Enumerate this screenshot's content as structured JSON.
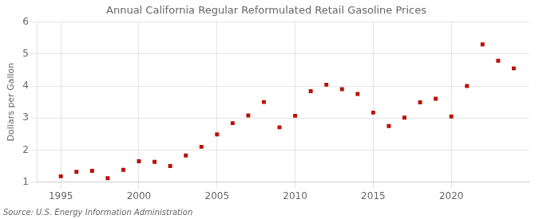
{
  "chart_data": {
    "type": "scatter",
    "title": "Annual California Regular Reformulated Retail Gasoline Prices",
    "ylabel": "Dollars per Gallon",
    "annotations": [
      "Source: U.S. Energy Information Administration"
    ],
    "x": [
      1995,
      1996,
      1997,
      1998,
      1999,
      2000,
      2001,
      2002,
      2003,
      2004,
      2005,
      2006,
      2007,
      2008,
      2009,
      2010,
      2011,
      2012,
      2013,
      2014,
      2015,
      2016,
      2017,
      2018,
      2019,
      2020,
      2021,
      2022,
      2023,
      2024
    ],
    "values": [
      1.18,
      1.32,
      1.35,
      1.12,
      1.38,
      1.65,
      1.63,
      1.5,
      1.83,
      2.1,
      2.49,
      2.84,
      3.08,
      3.5,
      2.71,
      3.07,
      3.84,
      4.04,
      3.9,
      3.75,
      3.17,
      2.75,
      3.01,
      3.49,
      3.6,
      3.05,
      4.0,
      5.3,
      4.79,
      4.55
    ],
    "color": "#bb1100",
    "marker": "square",
    "xlim": [
      1993.5,
      2025
    ],
    "xticks": [
      1995,
      2000,
      2005,
      2010,
      2015,
      2020
    ],
    "ylim": [
      1,
      6
    ],
    "yticks": [
      1,
      2,
      3,
      4,
      5,
      6
    ],
    "grid": true
  }
}
